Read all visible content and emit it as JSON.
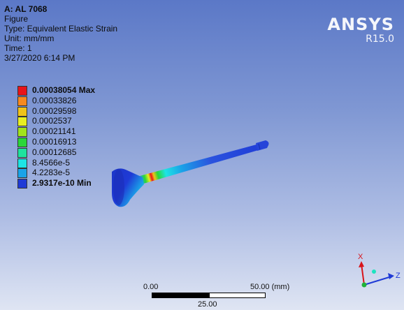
{
  "info": {
    "title": "A: AL 7068",
    "object": "Figure",
    "type": "Type: Equivalent Elastic Strain",
    "unit": "Unit: mm/mm",
    "time": "Time: 1",
    "date": "3/27/2020 6:14 PM"
  },
  "brand": {
    "name": "ANSYS",
    "version": "R15.0"
  },
  "legend": {
    "entries": [
      {
        "label": "0.00038054 Max",
        "color": "#e8141a",
        "bold": true
      },
      {
        "label": "0.00033826",
        "color": "#f7891e"
      },
      {
        "label": "0.00029598",
        "color": "#f0c31a"
      },
      {
        "label": "0.0002537",
        "color": "#e7ee22"
      },
      {
        "label": "0.00021141",
        "color": "#a2e31d"
      },
      {
        "label": "0.00016913",
        "color": "#2ad63a"
      },
      {
        "label": "0.00012685",
        "color": "#1ee39e"
      },
      {
        "label": "8.4566e-5",
        "color": "#1de4e4"
      },
      {
        "label": "4.2283e-5",
        "color": "#1aa3e8"
      },
      {
        "label": "2.9317e-10 Min",
        "color": "#1f3ad6",
        "bold": true
      }
    ]
  },
  "scale": {
    "start": "0.00",
    "mid": "25.00",
    "end": "50.00 (mm)"
  },
  "triad": {
    "x": "X",
    "z": "Z"
  }
}
